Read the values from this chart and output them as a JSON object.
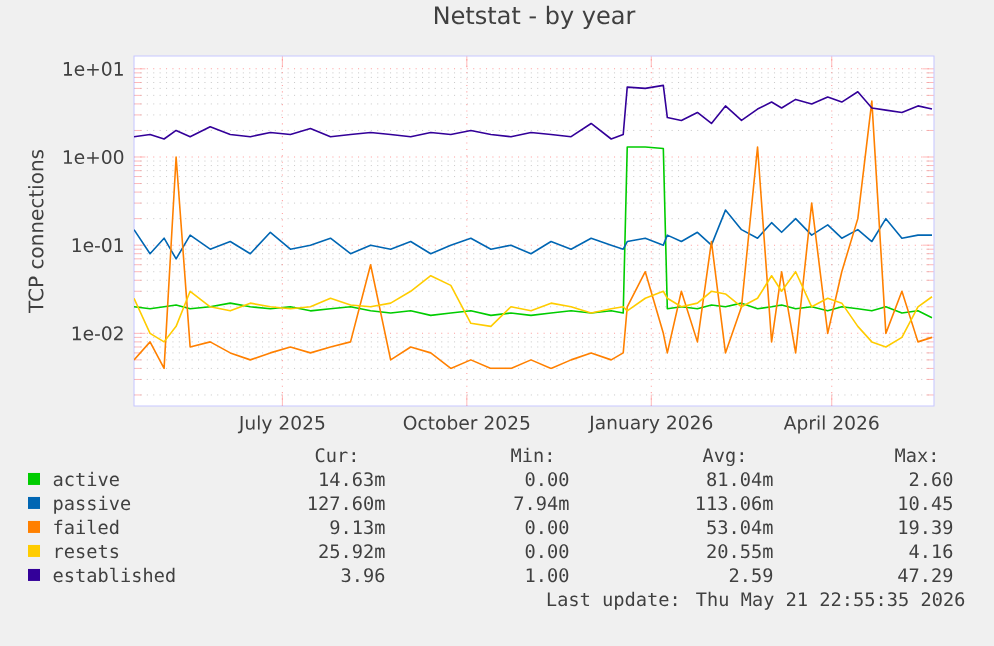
{
  "chart_data": {
    "type": "line",
    "title": "Netstat - by year",
    "ylabel": "TCP connections",
    "log": "y",
    "grid": true,
    "legend": "bottom",
    "x": [
      "2025-04-18",
      "2025-04-26",
      "2025-05-03",
      "2025-05-09",
      "2025-05-16",
      "2025-05-26",
      "2025-06-05",
      "2025-06-15",
      "2025-06-25",
      "2025-07-05",
      "2025-07-15",
      "2025-07-25",
      "2025-08-04",
      "2025-08-14",
      "2025-08-24",
      "2025-09-03",
      "2025-09-13",
      "2025-09-23",
      "2025-10-03",
      "2025-10-13",
      "2025-10-23",
      "2025-11-02",
      "2025-11-12",
      "2025-11-22",
      "2025-12-02",
      "2025-12-12",
      "2025-12-18",
      "2025-12-20",
      "2025-12-29",
      "2026-01-07",
      "2026-01-09",
      "2026-01-16",
      "2026-01-24",
      "2026-01-31",
      "2026-02-07",
      "2026-02-15",
      "2026-02-23",
      "2026-03-02",
      "2026-03-07",
      "2026-03-14",
      "2026-03-22",
      "2026-03-30",
      "2026-04-06",
      "2026-04-14",
      "2026-04-21",
      "2026-04-28",
      "2026-05-06",
      "2026-05-14",
      "2026-05-21"
    ],
    "xlim": [
      "2025-04-18",
      "2026-05-22"
    ],
    "xticks": [
      {
        "value": "2025-07-01",
        "label": "July 2025"
      },
      {
        "value": "2025-10-01",
        "label": "October 2025"
      },
      {
        "value": "2026-01-01",
        "label": "January 2026"
      },
      {
        "value": "2026-04-01",
        "label": "April 2026"
      }
    ],
    "ylim": [
      0.0015,
      14
    ],
    "yticks": [
      {
        "value": 0.01,
        "label": "1e-02"
      },
      {
        "value": 0.1,
        "label": "1e-01"
      },
      {
        "value": 1,
        "label": "1e+00"
      },
      {
        "value": 10,
        "label": "1e+01"
      }
    ],
    "series": [
      {
        "name": "active",
        "color": "#00cc00",
        "values": [
          0.02,
          0.019,
          0.02,
          0.021,
          0.019,
          0.02,
          0.022,
          0.02,
          0.019,
          0.02,
          0.018,
          0.019,
          0.02,
          0.018,
          0.017,
          0.018,
          0.016,
          0.017,
          0.018,
          0.016,
          0.017,
          0.016,
          0.017,
          0.018,
          0.017,
          0.018,
          0.017,
          1.3,
          1.3,
          1.25,
          0.019,
          0.02,
          0.019,
          0.021,
          0.02,
          0.022,
          0.019,
          0.02,
          0.021,
          0.019,
          0.02,
          0.018,
          0.02,
          0.019,
          0.018,
          0.02,
          0.017,
          0.018,
          0.015
        ]
      },
      {
        "name": "passive",
        "color": "#0066b3",
        "values": [
          0.15,
          0.08,
          0.12,
          0.07,
          0.13,
          0.09,
          0.11,
          0.08,
          0.14,
          0.09,
          0.1,
          0.12,
          0.08,
          0.1,
          0.09,
          0.11,
          0.08,
          0.1,
          0.12,
          0.09,
          0.1,
          0.08,
          0.11,
          0.09,
          0.12,
          0.1,
          0.09,
          0.11,
          0.12,
          0.1,
          0.13,
          0.11,
          0.14,
          0.1,
          0.25,
          0.15,
          0.12,
          0.18,
          0.14,
          0.2,
          0.13,
          0.17,
          0.12,
          0.15,
          0.11,
          0.2,
          0.12,
          0.13,
          0.13
        ]
      },
      {
        "name": "failed",
        "color": "#ff8000",
        "values": [
          0.005,
          0.008,
          0.004,
          1.0,
          0.007,
          0.008,
          0.006,
          0.005,
          0.006,
          0.007,
          0.006,
          0.007,
          0.008,
          0.06,
          0.005,
          0.007,
          0.006,
          0.004,
          0.005,
          0.004,
          0.004,
          0.005,
          0.004,
          0.005,
          0.006,
          0.005,
          0.006,
          0.02,
          0.05,
          0.01,
          0.006,
          0.03,
          0.008,
          0.11,
          0.006,
          0.02,
          1.3,
          0.008,
          0.05,
          0.006,
          0.3,
          0.01,
          0.05,
          0.2,
          4.3,
          0.01,
          0.03,
          0.008,
          0.009
        ]
      },
      {
        "name": "resets",
        "color": "#ffcc00",
        "values": [
          0.025,
          0.01,
          0.008,
          0.012,
          0.03,
          0.02,
          0.018,
          0.022,
          0.02,
          0.019,
          0.02,
          0.025,
          0.021,
          0.02,
          0.022,
          0.03,
          0.045,
          0.035,
          0.013,
          0.012,
          0.02,
          0.018,
          0.022,
          0.02,
          0.017,
          0.019,
          0.02,
          0.018,
          0.025,
          0.03,
          0.025,
          0.02,
          0.022,
          0.03,
          0.028,
          0.02,
          0.025,
          0.045,
          0.03,
          0.05,
          0.02,
          0.025,
          0.022,
          0.012,
          0.008,
          0.007,
          0.009,
          0.02,
          0.026
        ]
      },
      {
        "name": "established",
        "color": "#330099",
        "values": [
          1.7,
          1.8,
          1.6,
          2.0,
          1.7,
          2.2,
          1.8,
          1.7,
          1.9,
          1.8,
          2.1,
          1.7,
          1.8,
          1.9,
          1.8,
          1.7,
          1.9,
          1.8,
          2.0,
          1.8,
          1.7,
          1.9,
          1.8,
          1.7,
          2.4,
          1.6,
          1.8,
          6.2,
          6.0,
          6.5,
          2.8,
          2.6,
          3.2,
          2.4,
          3.8,
          2.6,
          3.5,
          4.2,
          3.6,
          4.5,
          4.0,
          4.8,
          4.2,
          5.5,
          3.6,
          3.4,
          3.2,
          3.8,
          3.5
        ]
      }
    ],
    "annotations": [
      "Cur:",
      "Min:",
      "Avg:",
      "Max:",
      "14.63m",
      "0.00",
      "81.04m",
      "2.60",
      "127.60m",
      "7.94m",
      "113.06m",
      "10.45",
      "9.13m",
      "0.00",
      "53.04m",
      "19.39",
      "25.92m",
      "0.00",
      "20.55m",
      "4.16",
      "3.96",
      "1.00",
      "2.59",
      "47.29",
      "Last update: Thu May 21 22:55:35 2026"
    ]
  }
}
